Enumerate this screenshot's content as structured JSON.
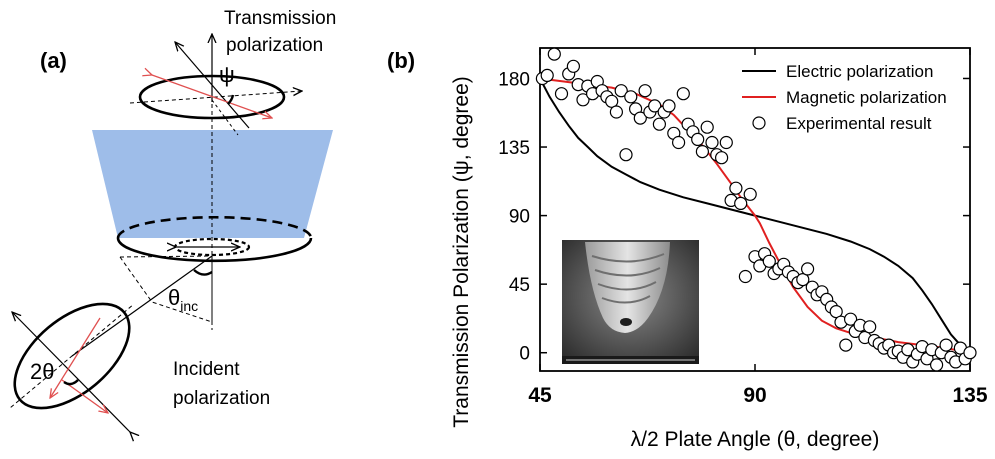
{
  "panel_a": {
    "label": "(a)",
    "top_label_line1": "Transmission",
    "top_label_line2": "polarization",
    "psi_symbol": "ψ",
    "theta_inc_main": "θ",
    "theta_inc_sub": "inc",
    "two_theta": "2θ",
    "bottom_label_line1": "Incident",
    "bottom_label_line2": "polarization",
    "colors": {
      "cone": "#9ebde9",
      "arrow_red": "#e05050",
      "ink": "#000000"
    }
  },
  "panel_b": {
    "label": "(b)"
  },
  "chart_data": {
    "type": "line",
    "xlabel": "λ/2 Plate Angle (θ, degree)",
    "ylabel": "Transmission Polarization (ψ, degree)",
    "xlim": [
      45,
      135
    ],
    "ylim": [
      -12,
      200
    ],
    "xticks": [
      45,
      90,
      135
    ],
    "yticks": [
      0,
      45,
      90,
      135,
      180
    ],
    "legend_position": "top-right",
    "legend": [
      {
        "label": "Electric polarization",
        "style": "line",
        "color": "#000000"
      },
      {
        "label": "Magnetic polarization",
        "style": "line",
        "color": "#e02020"
      },
      {
        "label": "Experimental result",
        "style": "marker",
        "color": "#000000"
      }
    ],
    "series": [
      {
        "name": "Electric polarization",
        "kind": "line",
        "color": "#000000",
        "x": [
          45,
          47,
          49,
          51,
          53,
          55,
          57,
          60,
          63,
          66,
          70,
          75,
          80,
          85,
          90,
          95,
          100,
          105,
          110,
          114,
          117,
          120,
          123,
          125,
          127,
          129,
          131,
          133,
          135
        ],
        "y": [
          180,
          168,
          158,
          149,
          141,
          135,
          129,
          122,
          117,
          112,
          107,
          102,
          98,
          94,
          90,
          86,
          82,
          78,
          73,
          68,
          63,
          57,
          49,
          41,
          32,
          22,
          12,
          5,
          0
        ]
      },
      {
        "name": "Magnetic polarization",
        "kind": "line",
        "color": "#e02020",
        "x": [
          45,
          50,
          55,
          60,
          65,
          70,
          73,
          76,
          79,
          82,
          85,
          87,
          89,
          90,
          91,
          93,
          95,
          98,
          101,
          104,
          107,
          110,
          115,
          120,
          125,
          130,
          135
        ],
        "y": [
          180,
          178,
          176,
          174,
          170,
          163,
          156,
          146,
          136,
          124,
          111,
          102,
          94,
          90,
          85,
          72,
          60,
          43,
          30,
          21,
          16,
          13,
          10,
          7,
          5,
          3,
          0
        ]
      },
      {
        "name": "Experimental result",
        "kind": "scatter",
        "x": [
          45.5,
          46.5,
          48,
          49.5,
          51,
          52,
          53,
          54,
          55,
          56,
          57,
          58,
          59,
          60,
          61,
          62,
          63,
          64,
          65,
          66,
          67,
          68,
          69,
          70,
          71,
          72,
          73,
          74,
          75,
          76,
          77,
          78,
          79,
          80,
          81,
          82,
          83,
          84,
          85,
          86,
          87,
          88,
          89,
          90,
          91,
          92,
          93,
          94,
          95,
          96,
          97,
          98,
          99,
          100,
          101,
          102,
          103,
          104,
          105,
          106,
          107,
          108,
          109,
          110,
          111,
          112,
          113,
          114,
          115,
          116,
          117,
          118,
          119,
          120,
          121,
          122,
          123,
          124,
          125,
          126,
          127,
          128,
          129,
          130,
          131,
          132,
          133,
          134,
          135
        ],
        "y": [
          180,
          182,
          196,
          170,
          183,
          188,
          176,
          166,
          175,
          170,
          178,
          172,
          168,
          165,
          158,
          172,
          130,
          168,
          160,
          154,
          172,
          158,
          162,
          150,
          158,
          162,
          144,
          138,
          170,
          150,
          145,
          140,
          132,
          148,
          138,
          130,
          128,
          138,
          100,
          108,
          98,
          50,
          104,
          63,
          57,
          65,
          60,
          52,
          55,
          58,
          53,
          50,
          46,
          48,
          55,
          43,
          38,
          40,
          35,
          30,
          27,
          20,
          5,
          22,
          14,
          18,
          10,
          17,
          8,
          6,
          3,
          5,
          0,
          1,
          -3,
          2,
          -6,
          -1,
          4,
          -4,
          2,
          -8,
          0,
          5,
          -3,
          -6,
          3,
          -4,
          0
        ]
      }
    ],
    "inset": {
      "kind": "SEM image of a fiber tip"
    }
  }
}
